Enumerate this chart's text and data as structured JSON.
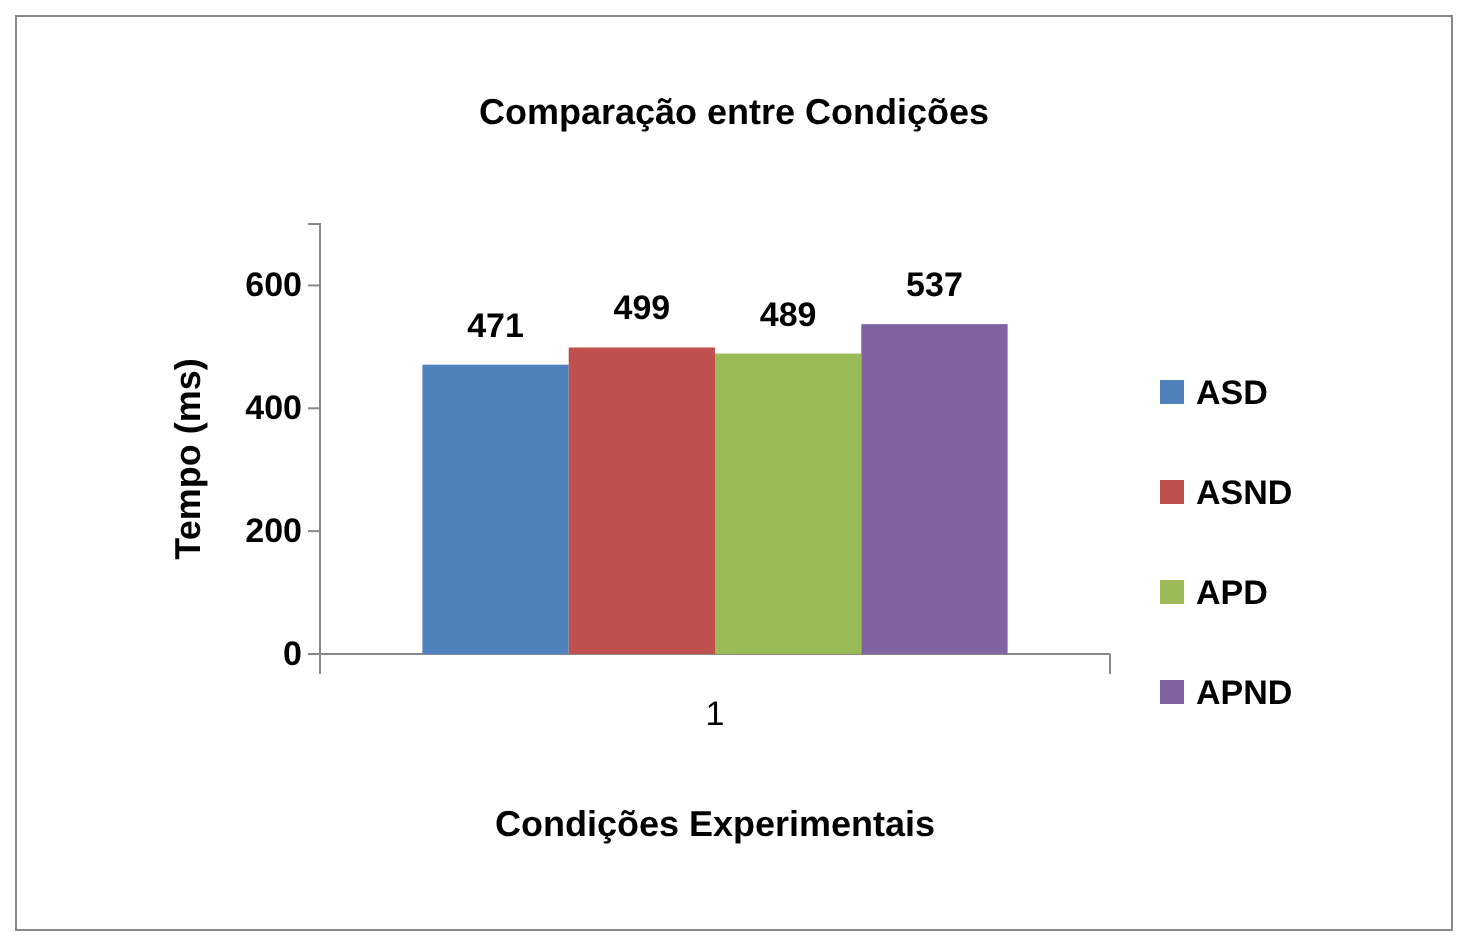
{
  "chart_data": {
    "type": "bar",
    "title": "Comparação entre Condições",
    "xlabel": "Condições Experimentais",
    "ylabel": "Tempo (ms)",
    "categories": [
      "1"
    ],
    "series": [
      {
        "name": "ASD",
        "color": "#4f81bd",
        "values": [
          471
        ]
      },
      {
        "name": "ASND",
        "color": "#c0504d",
        "values": [
          499
        ]
      },
      {
        "name": "APD",
        "color": "#9bbb59",
        "values": [
          489
        ]
      },
      {
        "name": "APND",
        "color": "#8064a2",
        "values": [
          537
        ]
      }
    ],
    "ylim": [
      0,
      700
    ],
    "yticks": [
      0,
      200,
      400,
      600
    ],
    "grid": false,
    "legend": "right",
    "data_labels": true
  }
}
